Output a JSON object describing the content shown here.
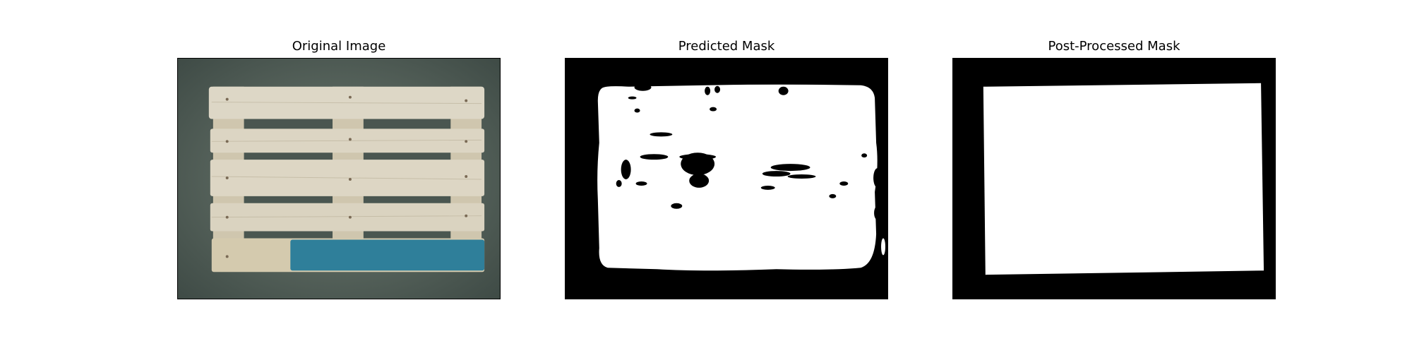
{
  "figure": {
    "panels": [
      {
        "title": "Original Image",
        "content": "pallet-photo"
      },
      {
        "title": "Predicted Mask",
        "content": "predicted-mask"
      },
      {
        "title": "Post-Processed Mask",
        "content": "post-processed-mask"
      }
    ]
  },
  "colors": {
    "background": "#ffffff",
    "mask_fg": "#ffffff",
    "mask_bg": "#000000",
    "floor": "#5b6a62",
    "wood": "#d9d3c3",
    "blue_paint": "#2f7f9a"
  }
}
